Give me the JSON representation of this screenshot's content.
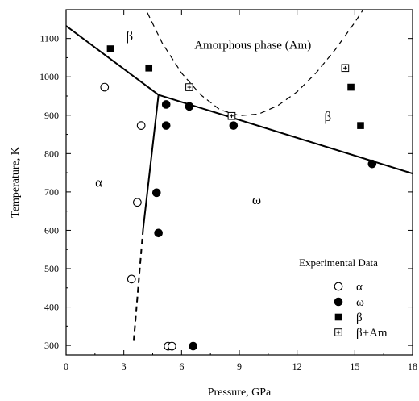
{
  "chart_data": {
    "type": "scatter",
    "title": "",
    "xlabel": "Pressure, GPa",
    "ylabel": "Temperature, K",
    "xlim": [
      0,
      18
    ],
    "ylim": [
      275,
      1175
    ],
    "xticks": [
      0,
      3,
      6,
      9,
      12,
      15,
      18
    ],
    "yticks": [
      300,
      400,
      500,
      600,
      700,
      800,
      900,
      1000,
      1100
    ],
    "x_tick_labels": [
      "0",
      "3",
      "6",
      "9",
      "12",
      "15",
      "18"
    ],
    "y_tick_labels": [
      "300",
      "400",
      "500",
      "600",
      "700",
      "800",
      "900",
      "1000",
      "1100"
    ],
    "grid": false,
    "legend_position": "bottom-right",
    "legend_title": "Experimental Data",
    "series": [
      {
        "name": "α",
        "marker": "open-circle",
        "points": [
          [
            2.0,
            973
          ],
          [
            3.9,
            873
          ],
          [
            3.7,
            673
          ],
          [
            3.4,
            473
          ],
          [
            5.3,
            298
          ],
          [
            5.5,
            298
          ]
        ]
      },
      {
        "name": "ω",
        "marker": "filled-circle",
        "points": [
          [
            5.2,
            928
          ],
          [
            6.4,
            923
          ],
          [
            5.2,
            873
          ],
          [
            8.7,
            873
          ],
          [
            4.7,
            698
          ],
          [
            4.8,
            593
          ],
          [
            15.9,
            773
          ],
          [
            6.6,
            298
          ]
        ]
      },
      {
        "name": "β",
        "marker": "filled-square",
        "points": [
          [
            2.3,
            1073
          ],
          [
            4.3,
            1023
          ],
          [
            14.8,
            973
          ],
          [
            15.3,
            873
          ]
        ]
      },
      {
        "name": "β+Am",
        "marker": "boxed-plus",
        "points": [
          [
            6.4,
            973
          ],
          [
            8.6,
            898
          ],
          [
            14.5,
            1023
          ]
        ]
      }
    ],
    "phase_boundaries": [
      {
        "style": "solid",
        "points": [
          [
            0,
            1133
          ],
          [
            4.8,
            953
          ]
        ]
      },
      {
        "style": "solid",
        "points": [
          [
            4.8,
            953
          ],
          [
            18,
            748
          ]
        ]
      },
      {
        "style": "solid",
        "points": [
          [
            4.8,
            953
          ],
          [
            4.0,
            603
          ]
        ]
      },
      {
        "style": "dashed",
        "points": [
          [
            4.0,
            603
          ],
          [
            3.5,
            303
          ]
        ]
      },
      {
        "style": "dashed",
        "points": [
          [
            4.0,
            1190
          ],
          [
            5.0,
            1088
          ],
          [
            6.0,
            1010
          ],
          [
            7.0,
            953
          ],
          [
            8.0,
            914
          ],
          [
            9.0,
            899
          ],
          [
            10.0,
            903
          ],
          [
            11.0,
            925
          ],
          [
            12.0,
            961
          ],
          [
            13.0,
            1011
          ],
          [
            14.0,
            1072
          ],
          [
            15.0,
            1142
          ],
          [
            15.5,
            1180
          ]
        ]
      }
    ],
    "annotations": [
      {
        "text": "β",
        "x": 3.3,
        "y": 1095
      },
      {
        "text": "Amorphous phase (Am)",
        "x": 9.7,
        "y": 1073
      },
      {
        "text": "β",
        "x": 13.6,
        "y": 885
      },
      {
        "text": "α",
        "x": 1.7,
        "y": 713
      },
      {
        "text": "ω",
        "x": 9.9,
        "y": 668
      }
    ]
  }
}
